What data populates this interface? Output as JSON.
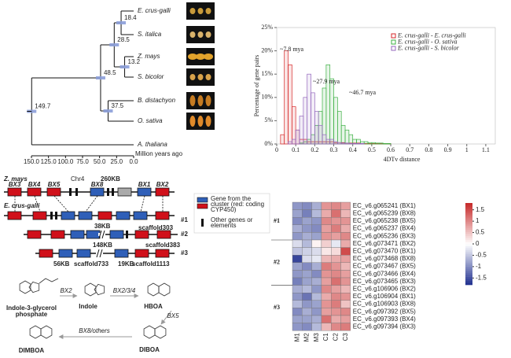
{
  "tree": {
    "leaves": [
      "E. crus-galli",
      "S. italica",
      "Z. mays",
      "S. bicolor",
      "B. distachyon",
      "O. sativa",
      "A. thaliana"
    ],
    "nodes": [
      {
        "age": 18.4
      },
      {
        "age": 28.5
      },
      {
        "age": 13.2
      },
      {
        "age": 48.5
      },
      {
        "age": 37.5
      },
      {
        "age": 149.7
      }
    ],
    "xlim": [
      150,
      0
    ],
    "axis_ticks": [
      {
        "value": 150,
        "label": "150.0"
      },
      {
        "value": 125,
        "label": "125.0"
      },
      {
        "value": 100,
        "label": "100.0"
      },
      {
        "value": 75,
        "label": "75.0"
      },
      {
        "value": 50,
        "label": "50.0"
      },
      {
        "value": 25,
        "label": "25.0"
      },
      {
        "value": 0,
        "label": "0.0"
      }
    ],
    "axis_label": "Million years ago"
  },
  "chart_data": [
    {
      "type": "histogram",
      "ylabel": "Percentage of gene pairs",
      "xlabel": "4DTv distance",
      "annotations": [
        "~7.8 mya",
        "~27.9 mya",
        "~46.7 mya"
      ],
      "bins": [
        0,
        0.02,
        0.04,
        0.06,
        0.08,
        0.1,
        0.12,
        0.14,
        0.16,
        0.18,
        0.2,
        0.22,
        0.24,
        0.26,
        0.28,
        0.3,
        0.32,
        0.34,
        0.36,
        0.38,
        0.4,
        0.42,
        0.44,
        0.46,
        0.48,
        0.5,
        0.52,
        0.54,
        0.56,
        0.58,
        0.6
      ],
      "series": [
        {
          "name": "E. crus-galli - E. crus-galli",
          "color": "#d62728",
          "values": [
            0,
            2,
            20,
            17,
            8,
            3,
            1,
            1,
            0.5,
            0.5,
            0.5,
            0.5,
            0.5,
            0.5,
            0.5,
            0.3,
            0.3,
            0.3,
            0.2,
            0.2,
            0.2,
            0.2,
            0.1,
            0.1,
            0.1,
            0.1,
            0.1,
            0.1,
            0.1,
            0.1
          ]
        },
        {
          "name": "E. crus-galli - O. sativa",
          "color": "#3cb043",
          "values": [
            0,
            0,
            0,
            0,
            0,
            0,
            0.2,
            0.5,
            1,
            2,
            4,
            7,
            12,
            17,
            14,
            10,
            7,
            4,
            3,
            2,
            1,
            1,
            0.5,
            0.5,
            0.3,
            0.3,
            0.2,
            0.2,
            0.1,
            0.1
          ]
        },
        {
          "name": "E. crus-galli - S. bicolor",
          "color": "#9467bd",
          "values": [
            0,
            0,
            0,
            0.5,
            1,
            3,
            6,
            10,
            15,
            11,
            7,
            4,
            2,
            1,
            1,
            0.5,
            0.3,
            0.2,
            0.2,
            0.1,
            0.1,
            0.1,
            0.1,
            0,
            0,
            0,
            0,
            0,
            0,
            0
          ]
        }
      ],
      "xlim": [
        0,
        1.15
      ],
      "xticks": [
        0,
        0.1,
        0.2,
        0.3,
        0.4,
        0.5,
        0.6,
        0.7,
        0.8,
        0.9,
        1,
        1.1
      ],
      "ylim": [
        0,
        25
      ],
      "yticks": [
        {
          "value": 0,
          "label": "0%"
        },
        {
          "value": 5,
          "label": "5%"
        },
        {
          "value": 10,
          "label": "10%"
        },
        {
          "value": 15,
          "label": "15%"
        },
        {
          "value": 20,
          "label": "20%"
        },
        {
          "value": 25,
          "label": "25%"
        }
      ],
      "legend": "upper right"
    },
    {
      "type": "heatmap",
      "columns": [
        "M1",
        "M2",
        "M3",
        "C1",
        "C2",
        "C3"
      ],
      "groups": [
        {
          "label": "#1",
          "rows": [
            {
              "name": "EC_v6.g065241 (BX1)",
              "values": [
                -0.9,
                -1.0,
                -0.7,
                0.9,
                1.0,
                0.8
              ]
            },
            {
              "name": "EC_v6.g065239 (BX8)",
              "values": [
                -0.8,
                -1.1,
                -0.6,
                0.7,
                1.2,
                0.6
              ]
            },
            {
              "name": "EC_v6.g065238 (BX5)",
              "values": [
                -1.0,
                -0.8,
                -0.9,
                1.0,
                0.9,
                0.9
              ]
            },
            {
              "name": "EC_v6.g065237 (BX4)",
              "values": [
                -0.7,
                -0.9,
                -1.0,
                0.8,
                1.1,
                0.7
              ]
            },
            {
              "name": "EC_v6.g065236 (BX3)",
              "values": [
                -0.9,
                -0.7,
                -0.8,
                0.9,
                0.8,
                1.0
              ]
            }
          ]
        },
        {
          "label": "#2",
          "rows": [
            {
              "name": "EC_v6.g073471 (BX2)",
              "values": [
                -0.3,
                -0.6,
                0.1,
                0.4,
                -0.2,
                0.7
              ]
            },
            {
              "name": "EC_v6.g073470 (BX1)",
              "values": [
                -0.5,
                -0.4,
                -0.3,
                0.2,
                0.3,
                1.5
              ]
            },
            {
              "name": "EC_v6.g073468 (BX8)",
              "values": [
                -1.6,
                -0.3,
                -0.2,
                0.6,
                0.7,
                0.8
              ]
            },
            {
              "name": "EC_v6.g073467 (BX5)",
              "values": [
                -0.8,
                -1.0,
                -0.7,
                1.1,
                0.9,
                0.6
              ]
            },
            {
              "name": "EC_v6.g073466 (BX4)",
              "values": [
                -0.9,
                -0.8,
                -1.0,
                0.9,
                1.0,
                0.8
              ]
            },
            {
              "name": "EC_v6.g073465 (BX3)",
              "values": [
                -1.1,
                -0.8,
                -0.7,
                0.8,
                1.2,
                0.9
              ]
            }
          ]
        },
        {
          "label": "#3",
          "rows": [
            {
              "name": "EC_v6.g106906 (BX2)",
              "values": [
                -0.7,
                -0.6,
                -0.9,
                1.0,
                0.8,
                0.6
              ]
            },
            {
              "name": "EC_v6.g106904 (BX1)",
              "values": [
                -0.9,
                -1.2,
                -0.6,
                0.7,
                1.0,
                0.9
              ]
            },
            {
              "name": "EC_v6.g106903 (BX8)",
              "values": [
                -0.6,
                -0.9,
                -0.8,
                0.9,
                1.1,
                0.5
              ]
            },
            {
              "name": "EC_v6.g097392 (BX5)",
              "values": [
                -1.0,
                -0.7,
                -0.9,
                0.8,
                0.9,
                1.0
              ]
            },
            {
              "name": "EC_v6.g097393 (BX4)",
              "values": [
                -0.8,
                -0.8,
                -0.7,
                1.2,
                0.7,
                0.8
              ]
            },
            {
              "name": "EC_v6.g097394 (BX3)",
              "values": [
                -0.9,
                -1.0,
                -0.6,
                0.6,
                1.0,
                1.1
              ]
            }
          ]
        }
      ],
      "colorbar_lim": [
        -1.8,
        1.8
      ],
      "colorbar_ticks": [
        1.5,
        1,
        0.5,
        0,
        -0.5,
        -1,
        -1.5
      ],
      "colors": [
        "#1f2f8f",
        "#ffffff",
        "#c62828"
      ]
    }
  ],
  "gene_cluster": {
    "species_top": "Z. mays",
    "chromosome": "Chr4",
    "size_top": "260KB",
    "genes_top": [
      "BX3",
      "BX4",
      "BX5",
      "BX8",
      "BX1",
      "BX2"
    ],
    "species_bottom": "E. crus-galli",
    "rows": [
      {
        "label": "#1",
        "segments": [
          {
            "size": "38KB",
            "name": "scaffold303"
          }
        ]
      },
      {
        "label": "#2",
        "segments": [
          {
            "size": "148KB",
            "name": "scaffold383"
          }
        ]
      },
      {
        "label": "#3",
        "segments": [
          {
            "size": "56KB",
            "name": "scaffold733"
          },
          {
            "size": "19KB",
            "name": "scaffold1113"
          }
        ]
      }
    ],
    "legend_gene": [
      "Gene from the",
      "cluster (red: coding",
      "CYP450)"
    ],
    "legend_other": [
      "Other genes or",
      "elements"
    ]
  },
  "pathway": {
    "compounds": [
      [
        "Indole-3-glycerol",
        "phosphate"
      ],
      [
        "Indole"
      ],
      [
        "HBOA"
      ],
      [
        "DIBOA"
      ],
      [
        "DIMBOA"
      ]
    ],
    "enzymes": [
      "BX2",
      "BX2/3/4",
      "BX5",
      "BX8/others"
    ]
  }
}
